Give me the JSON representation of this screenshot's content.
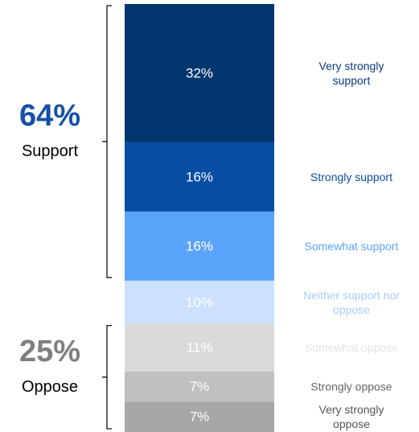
{
  "chart_data": {
    "type": "bar",
    "stacked": true,
    "orientation": "vertical",
    "categories": [
      "Very strongly support",
      "Strongly support",
      "Somewhat support",
      "Neither support nor oppose",
      "Somewhat oppose",
      "Strongly oppose",
      "Very strongly oppose"
    ],
    "category_lines": [
      [
        "Very strongly",
        "support"
      ],
      [
        "Strongly support"
      ],
      [
        "Somewhat support"
      ],
      [
        "Neither support nor",
        "oppose"
      ],
      [
        "Somewhat oppose"
      ],
      [
        "Strongly oppose"
      ],
      [
        "Very strongly",
        "oppose"
      ]
    ],
    "values": [
      32,
      16,
      16,
      10,
      11,
      7,
      7
    ],
    "value_labels": [
      "32%",
      "16%",
      "16%",
      "10%",
      "11%",
      "7%",
      "7%"
    ],
    "colors": [
      "#03366E",
      "#074DA4",
      "#5AA3FA",
      "#CBE1FF",
      "#DADADA",
      "#C0C0C0",
      "#A7A7A7"
    ],
    "label_colors": [
      "#083A85",
      "#0A4FA5",
      "#5BA5FA",
      "#A9CCF7",
      "#E4E4E4",
      "#666666",
      "#555555"
    ],
    "groups": [
      {
        "pct": "64%",
        "name": "Support",
        "members": [
          0,
          1,
          2
        ],
        "color": "#1450A8"
      },
      {
        "pct": "25%",
        "name": "Oppose",
        "members": [
          4,
          5,
          6
        ],
        "color": "#7F7F7F"
      }
    ]
  }
}
